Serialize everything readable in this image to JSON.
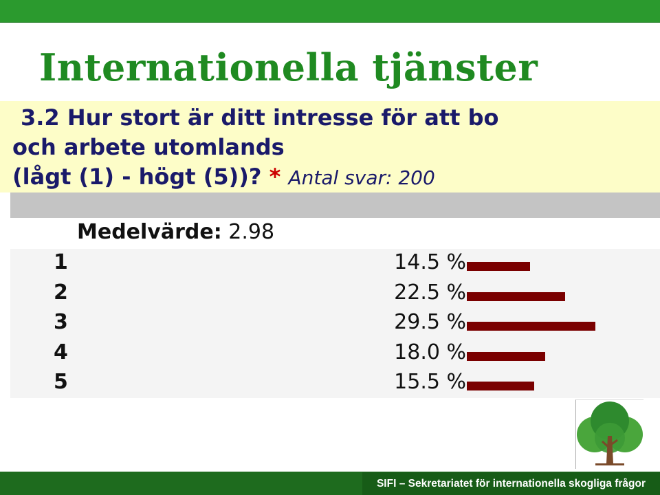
{
  "title": "Internationella tjänster",
  "question": {
    "line1": "3.2 Hur stort är ditt intresse för att bo",
    "line2": "och arbete utomlands",
    "line3": "(lågt (1) - högt (5))?",
    "asterisk": "*",
    "answers_label": "Antal svar: 200"
  },
  "mean": {
    "label": "Medelvärde:",
    "value": "2.98"
  },
  "chart_data": {
    "type": "bar",
    "orientation": "horizontal",
    "categories": [
      "1",
      "2",
      "3",
      "4",
      "5"
    ],
    "values": [
      14.5,
      22.5,
      29.5,
      18.0,
      15.5
    ],
    "value_labels": [
      "14.5 %",
      "22.5 %",
      "29.5 %",
      "18.0 %",
      "15.5 %"
    ],
    "unit": "%",
    "bar_color": "#7a0000"
  },
  "footer": {
    "text": "SIFI – Sekretariatet för internationella skogliga frågor"
  },
  "colors": {
    "brand_green": "#2b9a2e",
    "title_green": "#1f8a21",
    "question_bg": "#fdfdc8"
  }
}
